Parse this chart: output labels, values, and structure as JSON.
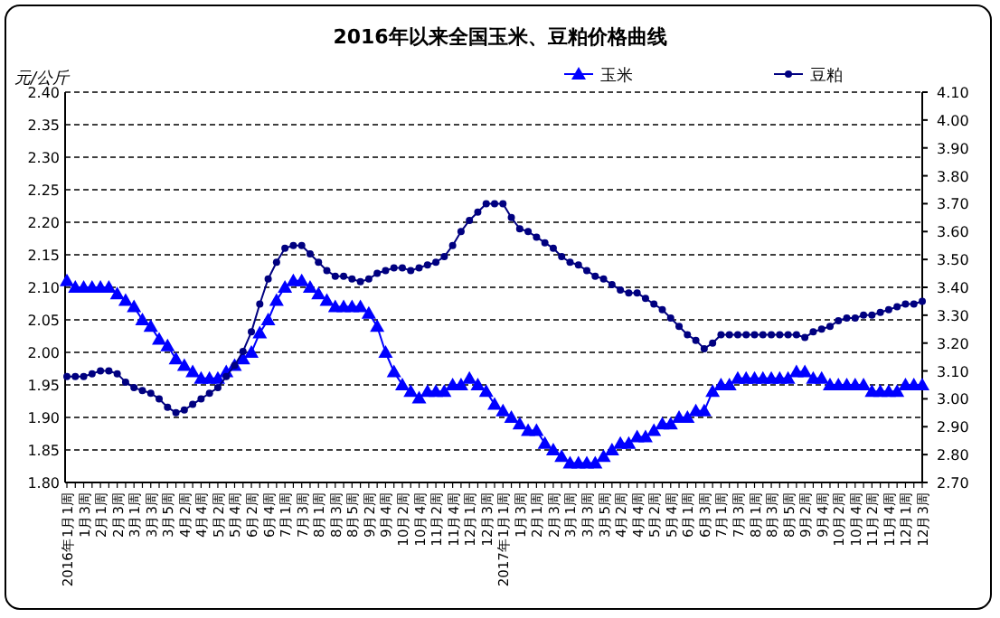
{
  "chart_data": {
    "type": "line",
    "title": "2016年以来全国玉米、豆粕价格曲线",
    "ylabel": "元/公斤",
    "categories": [
      "2016年1月1周",
      null,
      "1月3周",
      null,
      "2月1周",
      null,
      "2月3周",
      null,
      "3月1周",
      null,
      "3月3周",
      null,
      "3月5周",
      null,
      "4月2周",
      null,
      "4月4周",
      null,
      "5月2周",
      null,
      "5月4周",
      null,
      "6月2周",
      null,
      "6月4周",
      null,
      "7月1周",
      null,
      "7月3周",
      null,
      "8月1周",
      null,
      "8月3周",
      null,
      "8月5周",
      null,
      "9月2周",
      null,
      "9月4周",
      null,
      "10月2周",
      null,
      "10月4周",
      null,
      "11月2周",
      null,
      "11月4周",
      null,
      "12月1周",
      null,
      "12月3周",
      null,
      "2017年1月1周",
      null,
      "1月3周",
      null,
      "2月1周",
      null,
      "2月3周",
      null,
      "3月1周",
      null,
      "3月3周",
      null,
      "3月5周",
      null,
      "4月2周",
      null,
      "4月4周",
      null,
      "5月2周",
      null,
      "5月4周",
      null,
      "6月1周",
      null,
      "6月3周",
      null,
      "7月1周",
      null,
      "7月3周",
      null,
      "8月1周",
      null,
      "8月3周",
      null,
      "8月5周",
      null,
      "9月2周",
      null,
      "9月4周",
      null,
      "10月2周",
      null,
      "10月4周",
      null,
      "11月2周",
      null,
      "11月4周",
      null,
      "12月1周",
      null,
      "12月3周"
    ],
    "series": [
      {
        "name": "玉米",
        "color": "#0000ff",
        "marker": "triangle",
        "values": [
          2.11,
          2.1,
          2.1,
          2.1,
          2.1,
          2.1,
          2.09,
          2.08,
          2.07,
          2.05,
          2.04,
          2.02,
          2.01,
          1.99,
          1.98,
          1.97,
          1.96,
          1.96,
          1.96,
          1.97,
          1.98,
          1.99,
          2.0,
          2.03,
          2.05,
          2.08,
          2.1,
          2.11,
          2.11,
          2.1,
          2.09,
          2.08,
          2.07,
          2.07,
          2.07,
          2.07,
          2.06,
          2.04,
          2.0,
          1.97,
          1.95,
          1.94,
          1.93,
          1.94,
          1.94,
          1.94,
          1.95,
          1.95,
          1.96,
          1.95,
          1.94,
          1.92,
          1.91,
          1.9,
          1.89,
          1.88,
          1.88,
          1.86,
          1.85,
          1.84,
          1.83,
          1.83,
          1.83,
          1.83,
          1.84,
          1.85,
          1.86,
          1.86,
          1.87,
          1.87,
          1.88,
          1.89,
          1.89,
          1.9,
          1.9,
          1.91,
          1.91,
          1.94,
          1.95,
          1.95,
          1.96,
          1.96,
          1.96,
          1.96,
          1.96,
          1.96,
          1.96,
          1.97,
          1.97,
          1.96,
          1.96,
          1.95,
          1.95,
          1.95,
          1.95,
          1.95,
          1.94,
          1.94,
          1.94,
          1.94,
          1.95,
          1.95,
          1.95
        ]
      },
      {
        "name": "豆粕",
        "color": "#000080",
        "marker": "circle",
        "axis": "y2",
        "values": [
          3.08,
          3.08,
          3.08,
          3.09,
          3.1,
          3.1,
          3.09,
          3.06,
          3.04,
          3.03,
          3.02,
          3.0,
          2.97,
          2.95,
          2.96,
          2.98,
          3.0,
          3.02,
          3.04,
          3.08,
          3.12,
          3.17,
          3.24,
          3.34,
          3.43,
          3.49,
          3.54,
          3.55,
          3.55,
          3.52,
          3.49,
          3.46,
          3.44,
          3.44,
          3.43,
          3.42,
          3.43,
          3.45,
          3.46,
          3.47,
          3.47,
          3.46,
          3.47,
          3.48,
          3.49,
          3.51,
          3.55,
          3.6,
          3.64,
          3.67,
          3.7,
          3.7,
          3.7,
          3.65,
          3.61,
          3.6,
          3.58,
          3.56,
          3.54,
          3.51,
          3.49,
          3.48,
          3.46,
          3.44,
          3.43,
          3.41,
          3.39,
          3.38,
          3.38,
          3.36,
          3.34,
          3.32,
          3.29,
          3.26,
          3.23,
          3.21,
          3.18,
          3.2,
          3.23,
          3.23,
          3.23,
          3.23,
          3.23,
          3.23,
          3.23,
          3.23,
          3.23,
          3.23,
          3.22,
          3.24,
          3.25,
          3.26,
          3.28,
          3.29,
          3.29,
          3.3,
          3.3,
          3.31,
          3.32,
          3.33,
          3.34,
          3.34,
          3.35
        ]
      }
    ],
    "ylim": [
      1.8,
      2.4
    ],
    "yticks": [
      {
        "value": 1.8,
        "label": "1.80"
      },
      {
        "value": 1.85,
        "label": "1.85"
      },
      {
        "value": 1.9,
        "label": "1.90"
      },
      {
        "value": 1.95,
        "label": "1.95"
      },
      {
        "value": 2.0,
        "label": "2.00"
      },
      {
        "value": 2.05,
        "label": "2.05"
      },
      {
        "value": 2.1,
        "label": "2.10"
      },
      {
        "value": 2.15,
        "label": "2.15"
      },
      {
        "value": 2.2,
        "label": "2.20"
      },
      {
        "value": 2.25,
        "label": "2.25"
      },
      {
        "value": 2.3,
        "label": "2.30"
      },
      {
        "value": 2.35,
        "label": "2.35"
      },
      {
        "value": 2.4,
        "label": "2.40"
      }
    ],
    "y2lim": [
      2.7,
      4.1
    ],
    "y2ticks": [
      {
        "value": 2.7,
        "label": "2.70"
      },
      {
        "value": 2.8,
        "label": "2.80"
      },
      {
        "value": 2.9,
        "label": "2.90"
      },
      {
        "value": 3.0,
        "label": "3.00"
      },
      {
        "value": 3.1,
        "label": "3.10"
      },
      {
        "value": 3.2,
        "label": "3.20"
      },
      {
        "value": 3.3,
        "label": "3.30"
      },
      {
        "value": 3.4,
        "label": "3.40"
      },
      {
        "value": 3.5,
        "label": "3.50"
      },
      {
        "value": 3.6,
        "label": "3.60"
      },
      {
        "value": 3.7,
        "label": "3.70"
      },
      {
        "value": 3.8,
        "label": "3.80"
      },
      {
        "value": 3.9,
        "label": "3.90"
      },
      {
        "value": 4.0,
        "label": "4.00"
      },
      {
        "value": 4.1,
        "label": "4.10"
      }
    ],
    "grid": "y",
    "legend": "top right"
  }
}
